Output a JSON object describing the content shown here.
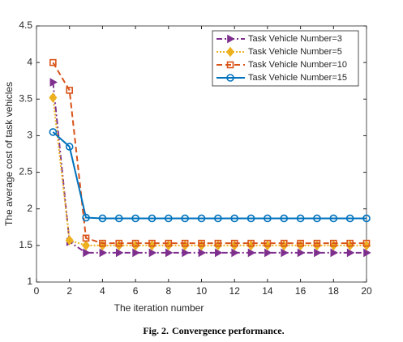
{
  "chart_data": {
    "type": "line",
    "x_label": "The iteration number",
    "y_label": "The average cost of task vehicles",
    "caption": {
      "label": "Fig. 2.",
      "text": "Convergence performance."
    },
    "x": [
      1,
      2,
      3,
      4,
      5,
      6,
      7,
      8,
      9,
      10,
      11,
      12,
      13,
      14,
      15,
      16,
      17,
      18,
      19,
      20
    ],
    "xlim": [
      0,
      20
    ],
    "xticks": [
      0,
      2,
      4,
      6,
      8,
      10,
      12,
      14,
      16,
      18,
      20
    ],
    "ylim": [
      1,
      4.5
    ],
    "yticks": [
      1,
      1.5,
      2,
      2.5,
      3,
      3.5,
      4,
      4.5
    ],
    "grid": false,
    "legend": "upper right",
    "series": [
      {
        "name": "Task Vehicle Number=3",
        "color": "#7e2f8e",
        "linestyle": "dashdot",
        "marker": "triangle-right",
        "values": [
          3.73,
          1.55,
          1.4,
          1.4,
          1.4,
          1.4,
          1.4,
          1.4,
          1.4,
          1.4,
          1.4,
          1.4,
          1.4,
          1.4,
          1.4,
          1.4,
          1.4,
          1.4,
          1.4,
          1.4
        ]
      },
      {
        "name": "Task Vehicle Number=5",
        "color": "#edb120",
        "linestyle": "dotted",
        "marker": "diamond",
        "values": [
          3.52,
          1.57,
          1.5,
          1.5,
          1.5,
          1.5,
          1.5,
          1.5,
          1.5,
          1.5,
          1.5,
          1.5,
          1.5,
          1.5,
          1.5,
          1.5,
          1.5,
          1.5,
          1.5,
          1.5
        ]
      },
      {
        "name": "Task Vehicle Number=10",
        "color": "#d95319",
        "linestyle": "dashed",
        "marker": "square",
        "values": [
          4.0,
          3.62,
          1.6,
          1.53,
          1.53,
          1.53,
          1.53,
          1.53,
          1.53,
          1.53,
          1.53,
          1.53,
          1.53,
          1.53,
          1.53,
          1.53,
          1.53,
          1.53,
          1.53,
          1.53
        ]
      },
      {
        "name": "Task Vehicle Number=15",
        "color": "#0072bd",
        "linestyle": "solid",
        "marker": "circle",
        "values": [
          3.05,
          2.85,
          1.88,
          1.87,
          1.87,
          1.87,
          1.87,
          1.87,
          1.87,
          1.87,
          1.87,
          1.87,
          1.87,
          1.87,
          1.87,
          1.87,
          1.87,
          1.87,
          1.87,
          1.87
        ]
      }
    ]
  }
}
